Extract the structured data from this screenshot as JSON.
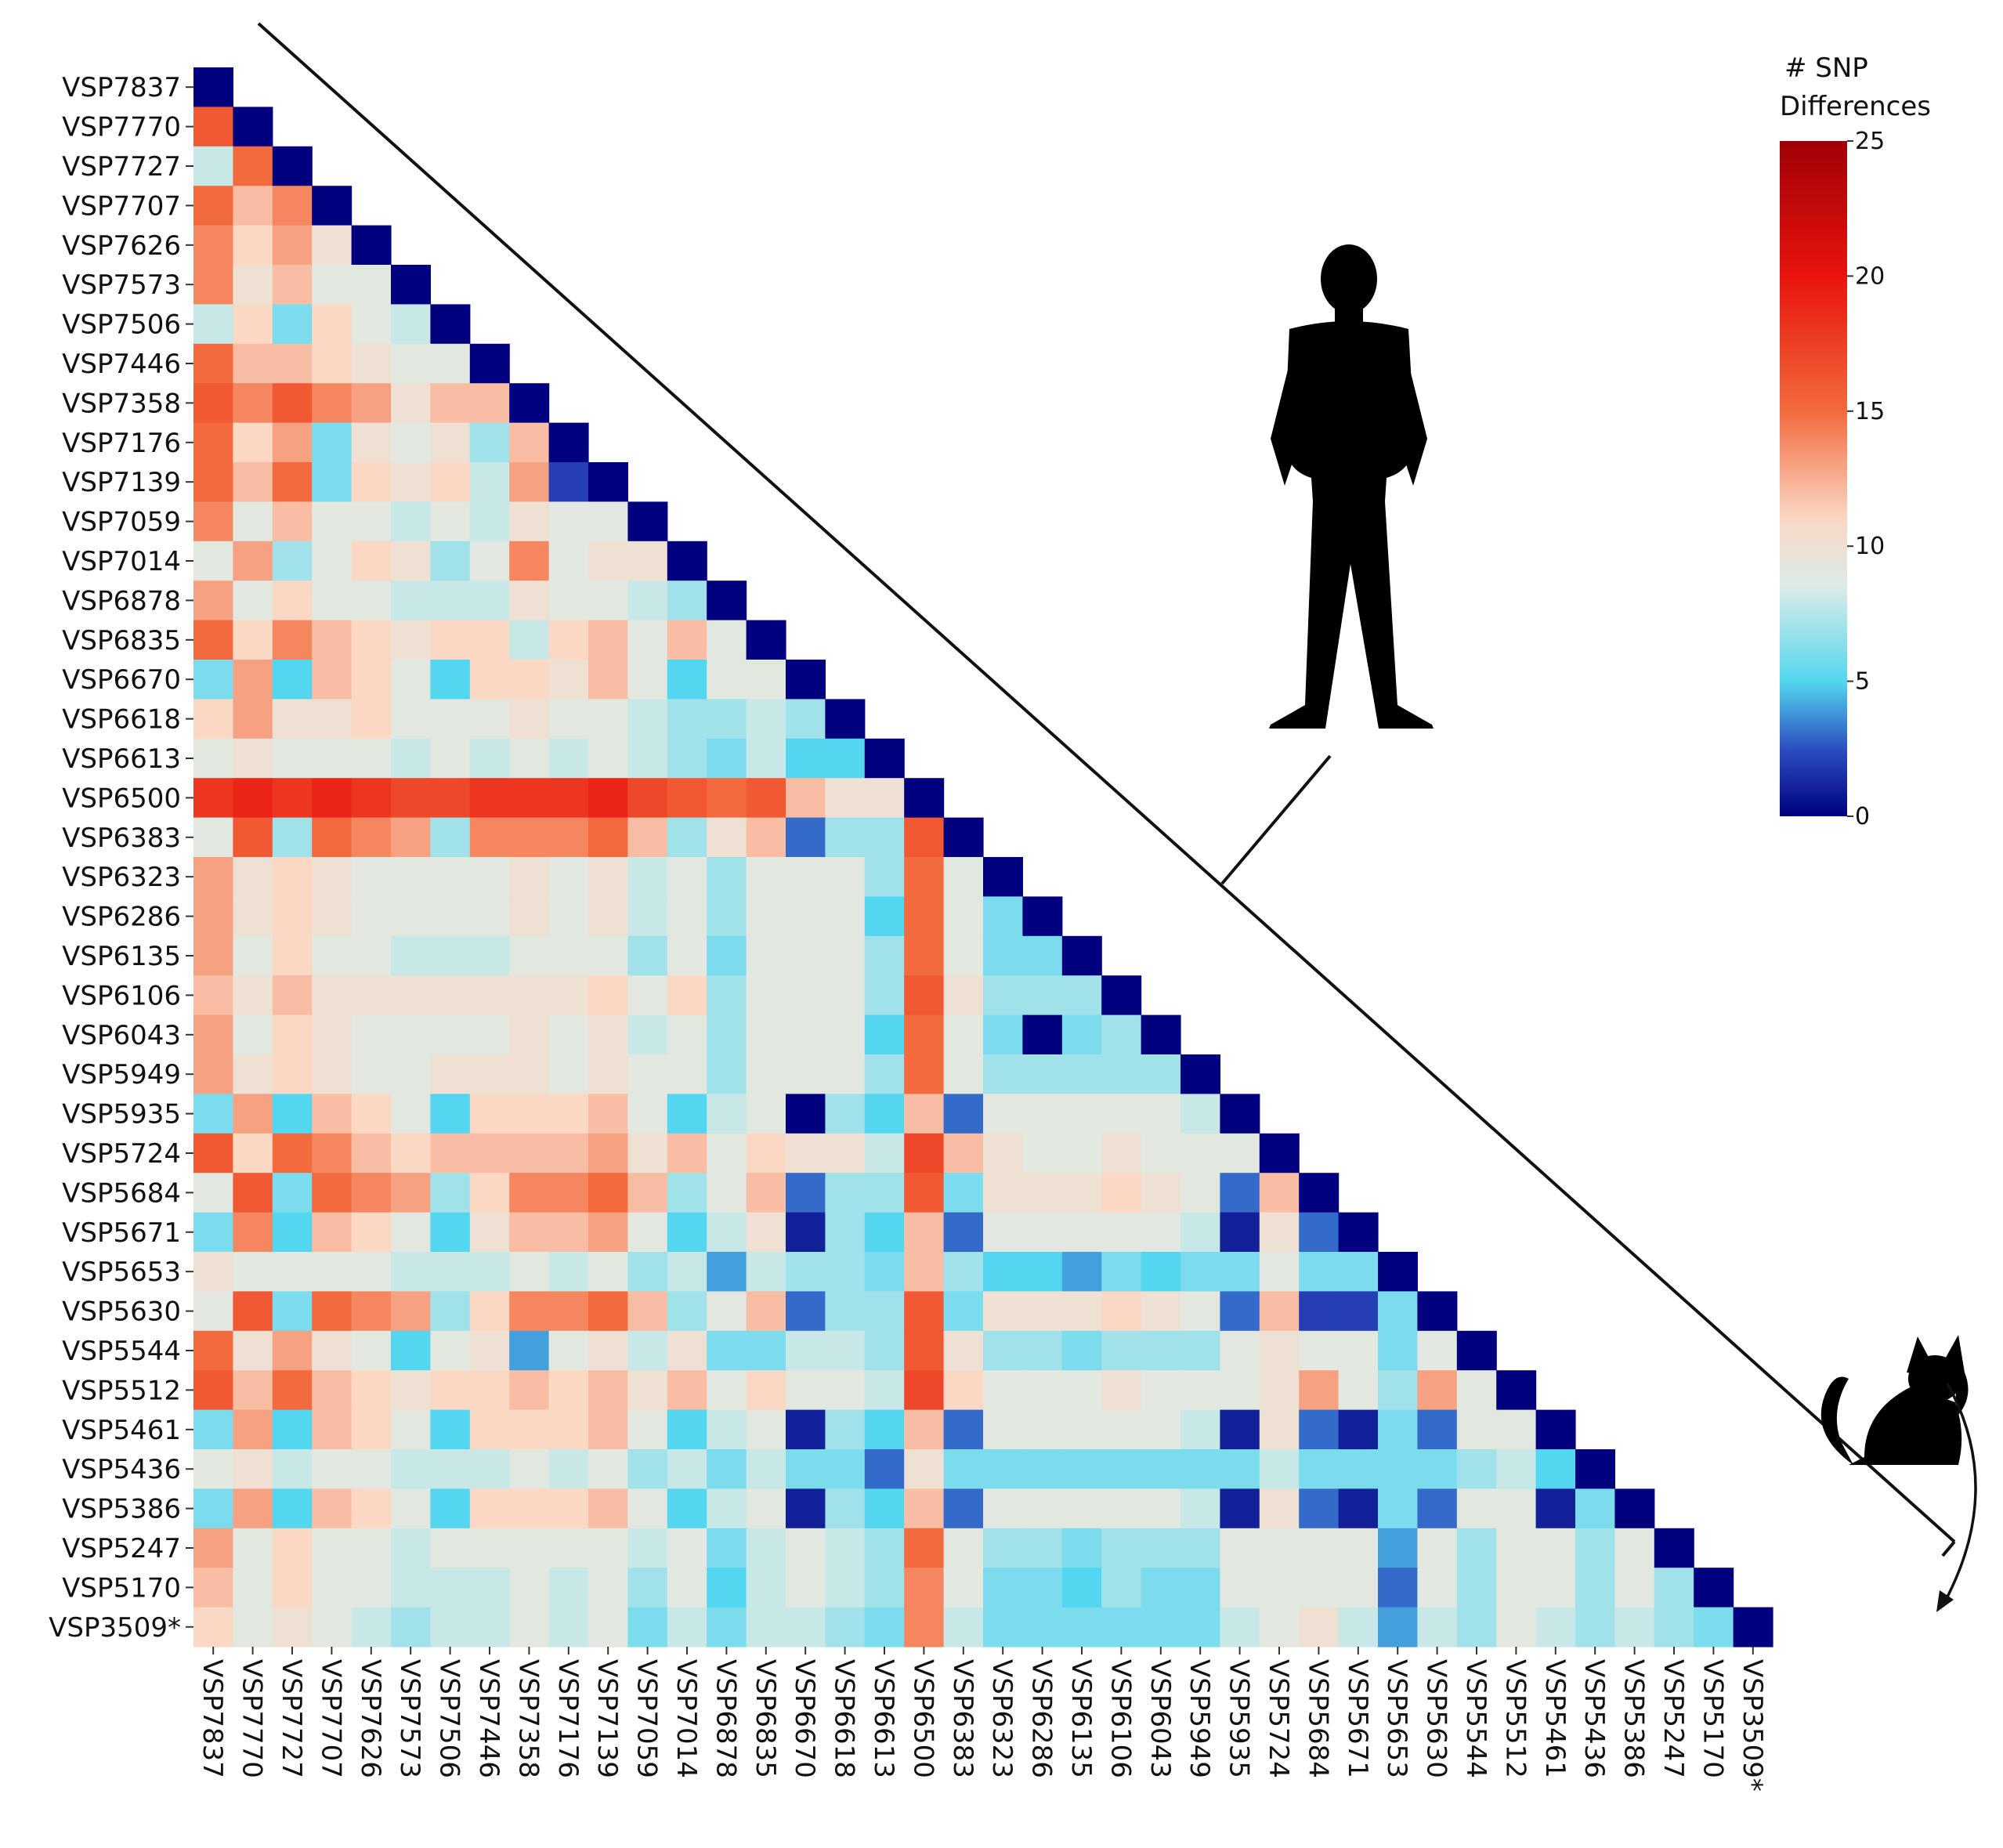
{
  "chart_data": {
    "type": "heatmap",
    "title": "",
    "xlabel": "",
    "ylabel": "",
    "labels": [
      "VSP7837",
      "VSP7770",
      "VSP7727",
      "VSP7707",
      "VSP7626",
      "VSP7573",
      "VSP7506",
      "VSP7446",
      "VSP7358",
      "VSP7176",
      "VSP7139",
      "VSP7059",
      "VSP7014",
      "VSP6878",
      "VSP6835",
      "VSP6670",
      "VSP6618",
      "VSP6613",
      "VSP6500",
      "VSP6383",
      "VSP6323",
      "VSP6286",
      "VSP6135",
      "VSP6106",
      "VSP6043",
      "VSP5949",
      "VSP5935",
      "VSP5724",
      "VSP5684",
      "VSP5671",
      "VSP5653",
      "VSP5630",
      "VSP5544",
      "VSP5512",
      "VSP5461",
      "VSP5436",
      "VSP5386",
      "VSP5247",
      "VSP5170",
      "VSP3509*"
    ],
    "matrix": [
      [
        0
      ],
      [
        16,
        0
      ],
      [
        8,
        15,
        0
      ],
      [
        15,
        12,
        14,
        0
      ],
      [
        14,
        11,
        13,
        10,
        0
      ],
      [
        14,
        10,
        12,
        9,
        9,
        0
      ],
      [
        8,
        11,
        6,
        11,
        9,
        8,
        0
      ],
      [
        15,
        12,
        12,
        11,
        10,
        9,
        9,
        0
      ],
      [
        16,
        14,
        16,
        14,
        13,
        10,
        12,
        12,
        0
      ],
      [
        15,
        11,
        13,
        6,
        10,
        9,
        10,
        7,
        12,
        0
      ],
      [
        15,
        12,
        15,
        6,
        11,
        10,
        11,
        8,
        13,
        2,
        0
      ],
      [
        14,
        9,
        12,
        9,
        9,
        8,
        9,
        8,
        10,
        9,
        9,
        0
      ],
      [
        9,
        13,
        7,
        9,
        11,
        10,
        7,
        9,
        14,
        9,
        10,
        10,
        0
      ],
      [
        13,
        9,
        11,
        9,
        9,
        8,
        8,
        8,
        10,
        9,
        9,
        8,
        7,
        0
      ],
      [
        15,
        11,
        14,
        12,
        11,
        10,
        11,
        11,
        8,
        11,
        12,
        9,
        12,
        9,
        0
      ],
      [
        6,
        13,
        5,
        12,
        11,
        9,
        5,
        11,
        11,
        10,
        12,
        9,
        5,
        9,
        9,
        0
      ],
      [
        11,
        13,
        10,
        10,
        11,
        9,
        9,
        9,
        10,
        9,
        9,
        8,
        7,
        7,
        8,
        7,
        0
      ],
      [
        9,
        10,
        9,
        9,
        9,
        8,
        9,
        8,
        9,
        8,
        9,
        8,
        7,
        6,
        8,
        5,
        5,
        0
      ],
      [
        18,
        19,
        18,
        19,
        18,
        17,
        17,
        18,
        18,
        18,
        19,
        17,
        16,
        15,
        16,
        12,
        10,
        10,
        0
      ],
      [
        9,
        16,
        7,
        15,
        14,
        13,
        7,
        14,
        14,
        14,
        15,
        12,
        7,
        10,
        12,
        3,
        7,
        7,
        16,
        0
      ],
      [
        13,
        10,
        11,
        10,
        9,
        9,
        9,
        9,
        10,
        9,
        10,
        8,
        9,
        7,
        9,
        9,
        9,
        7,
        15,
        9,
        0
      ],
      [
        13,
        10,
        11,
        10,
        9,
        9,
        9,
        9,
        10,
        9,
        10,
        8,
        9,
        7,
        9,
        9,
        9,
        5,
        15,
        9,
        6,
        0
      ],
      [
        13,
        9,
        11,
        9,
        9,
        8,
        8,
        8,
        9,
        9,
        9,
        7,
        9,
        6,
        9,
        9,
        9,
        7,
        15,
        9,
        6,
        6,
        0
      ],
      [
        12,
        10,
        12,
        10,
        10,
        10,
        10,
        10,
        10,
        10,
        11,
        9,
        11,
        7,
        9,
        9,
        9,
        7,
        16,
        10,
        7,
        7,
        7,
        0
      ],
      [
        13,
        9,
        11,
        10,
        9,
        9,
        9,
        9,
        10,
        9,
        10,
        8,
        9,
        7,
        9,
        9,
        9,
        5,
        15,
        9,
        6,
        0,
        6,
        7,
        0
      ],
      [
        13,
        10,
        11,
        10,
        9,
        9,
        10,
        10,
        10,
        9,
        10,
        9,
        9,
        7,
        9,
        9,
        9,
        7,
        15,
        9,
        7,
        7,
        7,
        7,
        7,
        0
      ],
      [
        6,
        13,
        5,
        12,
        11,
        9,
        5,
        11,
        11,
        11,
        12,
        9,
        5,
        8,
        9,
        0,
        7,
        5,
        12,
        3,
        9,
        9,
        9,
        9,
        9,
        8,
        0
      ],
      [
        16,
        11,
        15,
        14,
        12,
        11,
        12,
        12,
        12,
        12,
        13,
        10,
        12,
        9,
        11,
        10,
        10,
        8,
        17,
        12,
        10,
        9,
        9,
        10,
        9,
        9,
        9,
        0
      ],
      [
        9,
        16,
        6,
        15,
        14,
        13,
        7,
        11,
        14,
        14,
        15,
        12,
        7,
        9,
        12,
        3,
        7,
        7,
        16,
        6,
        10,
        10,
        10,
        11,
        10,
        9,
        3,
        12,
        0
      ],
      [
        6,
        14,
        5,
        12,
        11,
        9,
        5,
        10,
        12,
        12,
        13,
        9,
        5,
        8,
        10,
        1,
        7,
        5,
        12,
        3,
        9,
        9,
        9,
        9,
        9,
        8,
        1,
        10,
        3,
        0
      ],
      [
        10,
        9,
        9,
        9,
        9,
        8,
        8,
        8,
        9,
        8,
        9,
        7,
        8,
        4,
        8,
        7,
        7,
        6,
        12,
        7,
        5,
        5,
        4,
        6,
        5,
        6,
        6,
        9,
        6,
        6,
        0
      ],
      [
        9,
        16,
        6,
        15,
        14,
        13,
        7,
        11,
        14,
        14,
        15,
        12,
        7,
        9,
        12,
        3,
        7,
        7,
        16,
        6,
        10,
        10,
        10,
        11,
        10,
        9,
        3,
        12,
        2,
        2,
        6,
        0
      ],
      [
        15,
        10,
        13,
        10,
        9,
        5,
        9,
        10,
        4,
        9,
        10,
        8,
        10,
        6,
        6,
        8,
        8,
        7,
        16,
        10,
        7,
        7,
        6,
        7,
        7,
        7,
        9,
        10,
        9,
        9,
        6,
        9,
        0
      ],
      [
        16,
        12,
        15,
        12,
        11,
        10,
        11,
        11,
        12,
        11,
        12,
        10,
        12,
        9,
        11,
        9,
        9,
        8,
        17,
        11,
        9,
        9,
        9,
        10,
        9,
        9,
        9,
        10,
        13,
        9,
        7,
        13,
        9,
        0
      ],
      [
        6,
        13,
        5,
        12,
        11,
        9,
        5,
        11,
        11,
        11,
        12,
        9,
        5,
        8,
        9,
        1,
        7,
        5,
        12,
        3,
        9,
        9,
        9,
        9,
        9,
        8,
        1,
        10,
        3,
        1,
        6,
        3,
        9,
        9,
        0
      ],
      [
        9,
        10,
        8,
        9,
        9,
        8,
        8,
        8,
        9,
        8,
        9,
        7,
        8,
        6,
        8,
        6,
        6,
        3,
        10,
        6,
        6,
        6,
        6,
        6,
        6,
        6,
        6,
        8,
        6,
        6,
        6,
        6,
        7,
        8,
        5,
        0
      ],
      [
        6,
        13,
        5,
        12,
        11,
        9,
        5,
        11,
        11,
        11,
        12,
        9,
        5,
        8,
        9,
        1,
        7,
        5,
        12,
        3,
        9,
        9,
        9,
        9,
        9,
        8,
        1,
        10,
        3,
        1,
        6,
        3,
        9,
        9,
        1,
        6,
        0
      ],
      [
        13,
        9,
        11,
        9,
        9,
        8,
        9,
        9,
        9,
        9,
        9,
        8,
        9,
        6,
        8,
        9,
        8,
        7,
        15,
        9,
        7,
        7,
        6,
        7,
        7,
        7,
        9,
        9,
        9,
        9,
        4,
        9,
        7,
        9,
        9,
        7,
        9,
        0
      ],
      [
        12,
        9,
        11,
        9,
        9,
        8,
        8,
        8,
        9,
        8,
        9,
        7,
        9,
        5,
        8,
        9,
        8,
        7,
        14,
        9,
        6,
        6,
        5,
        7,
        6,
        6,
        9,
        9,
        9,
        9,
        3,
        9,
        7,
        9,
        9,
        7,
        9,
        7,
        0
      ],
      [
        11,
        9,
        10,
        9,
        8,
        7,
        8,
        8,
        9,
        8,
        9,
        6,
        8,
        6,
        8,
        8,
        7,
        6,
        14,
        8,
        6,
        6,
        6,
        6,
        6,
        6,
        8,
        9,
        10,
        8,
        4,
        8,
        7,
        9,
        8,
        7,
        8,
        7,
        6,
        0
      ]
    ],
    "colorbar": {
      "title": [
        "# SNP",
        "Differences"
      ],
      "min": 0,
      "max": 25,
      "ticks": [
        0,
        5,
        10,
        15,
        20,
        25
      ],
      "colormap": "diverging blue-red (RdBu_r)",
      "stops": [
        "#00007f",
        "#2c4fc0",
        "#53d6ef",
        "#dcebe6",
        "#fad8c4",
        "#f26a3e",
        "#e9140c",
        "#a00008"
      ]
    },
    "annotations": {
      "human_bracket": "spans VSP7837 to VSP5170 (human isolates)",
      "cat_arrow": "points to VSP3509* (cat isolate)"
    }
  },
  "icons": {
    "human": "human-silhouette-icon",
    "cat": "cat-silhouette-icon"
  }
}
